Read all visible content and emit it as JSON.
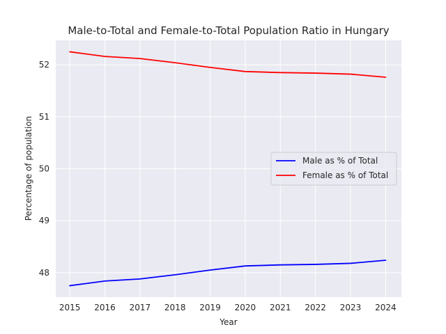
{
  "chart_data": {
    "type": "line",
    "title": "Male-to-Total and Female-to-Total Population Ratio in Hungary",
    "xlabel": "Year",
    "ylabel": "Percentage of population",
    "x": [
      2015,
      2016,
      2017,
      2018,
      2019,
      2020,
      2021,
      2022,
      2023,
      2024
    ],
    "xlim": [
      2014.6,
      2024.45
    ],
    "ylim": [
      47.53,
      52.47
    ],
    "yticks": [
      48,
      49,
      50,
      51,
      52
    ],
    "grid": true,
    "legend_position": "center-right",
    "series": [
      {
        "name": "Male as % of Total",
        "color": "#0000ff",
        "values": [
          47.75,
          47.84,
          47.88,
          47.96,
          48.05,
          48.13,
          48.15,
          48.16,
          48.18,
          48.24
        ]
      },
      {
        "name": "Female as % of Total",
        "color": "#ff0000",
        "values": [
          52.25,
          52.16,
          52.12,
          52.04,
          51.95,
          51.87,
          51.85,
          51.84,
          51.82,
          51.76
        ]
      }
    ]
  }
}
